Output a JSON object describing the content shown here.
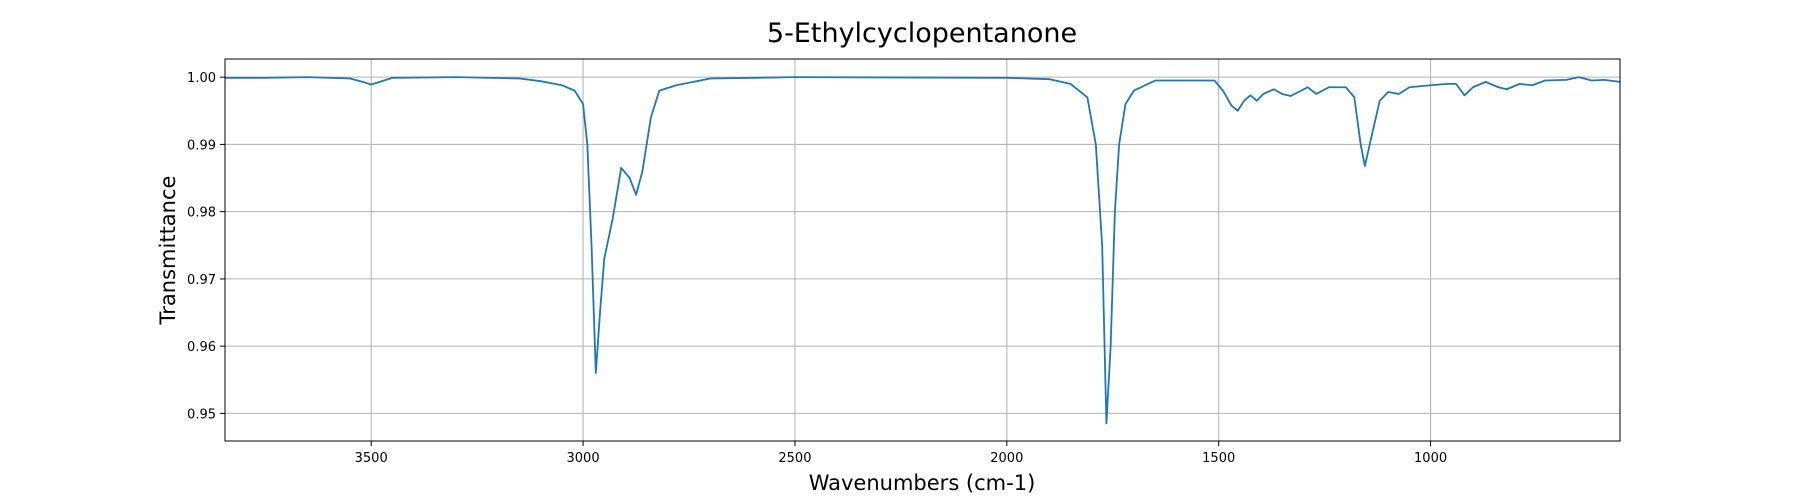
{
  "chart_data": {
    "type": "line",
    "title": "5-Ethylcyclopentanone",
    "xlabel": "Wavenumbers (cm-1)",
    "ylabel": "Transmittance",
    "xlim": [
      3845,
      553
    ],
    "ylim": [
      0.9459,
      1.0027
    ],
    "xticks": [
      3500,
      3000,
      2500,
      2000,
      1500,
      1000
    ],
    "yticks": [
      {
        "value": 0.95,
        "label": "0.95"
      },
      {
        "value": 0.96,
        "label": "0.96"
      },
      {
        "value": 0.97,
        "label": "0.97"
      },
      {
        "value": 0.98,
        "label": "0.98"
      },
      {
        "value": 0.99,
        "label": "0.99"
      },
      {
        "value": 1.0,
        "label": "1.00"
      }
    ],
    "grid": true,
    "x": [
      3845,
      3750,
      3650,
      3550,
      3520,
      3500,
      3480,
      3450,
      3300,
      3150,
      3100,
      3050,
      3020,
      3000,
      2990,
      2980,
      2970,
      2960,
      2950,
      2930,
      2910,
      2890,
      2875,
      2860,
      2840,
      2820,
      2780,
      2700,
      2500,
      2000,
      1900,
      1850,
      1810,
      1790,
      1775,
      1765,
      1755,
      1745,
      1735,
      1720,
      1700,
      1650,
      1510,
      1490,
      1470,
      1455,
      1440,
      1425,
      1410,
      1395,
      1370,
      1350,
      1330,
      1290,
      1270,
      1240,
      1200,
      1180,
      1165,
      1155,
      1140,
      1120,
      1100,
      1075,
      1050,
      1000,
      960,
      940,
      920,
      900,
      870,
      840,
      820,
      790,
      760,
      730,
      680,
      650,
      620,
      590,
      553
    ],
    "series": [
      {
        "name": "5-Ethylcyclopentanone",
        "color": "#1f77b4",
        "values": [
          0.9999,
          0.9999,
          1.0,
          0.9998,
          0.9993,
          0.9989,
          0.9993,
          0.9999,
          1.0,
          0.9998,
          0.9994,
          0.9988,
          0.998,
          0.996,
          0.99,
          0.975,
          0.956,
          0.965,
          0.973,
          0.979,
          0.9865,
          0.985,
          0.9825,
          0.986,
          0.994,
          0.998,
          0.9988,
          0.9998,
          1.0,
          0.9999,
          0.9997,
          0.999,
          0.997,
          0.99,
          0.975,
          0.9485,
          0.96,
          0.98,
          0.99,
          0.996,
          0.998,
          0.9995,
          0.9995,
          0.998,
          0.9958,
          0.995,
          0.9965,
          0.9973,
          0.9965,
          0.9975,
          0.9982,
          0.9975,
          0.9972,
          0.9985,
          0.9975,
          0.9985,
          0.9985,
          0.997,
          0.99,
          0.9868,
          0.991,
          0.9965,
          0.9978,
          0.9975,
          0.9985,
          0.9988,
          0.999,
          0.999,
          0.9973,
          0.9985,
          0.9993,
          0.9985,
          0.9982,
          0.999,
          0.9988,
          0.9995,
          0.9996,
          1.0,
          0.9995,
          0.9996,
          0.9993
        ]
      }
    ]
  }
}
